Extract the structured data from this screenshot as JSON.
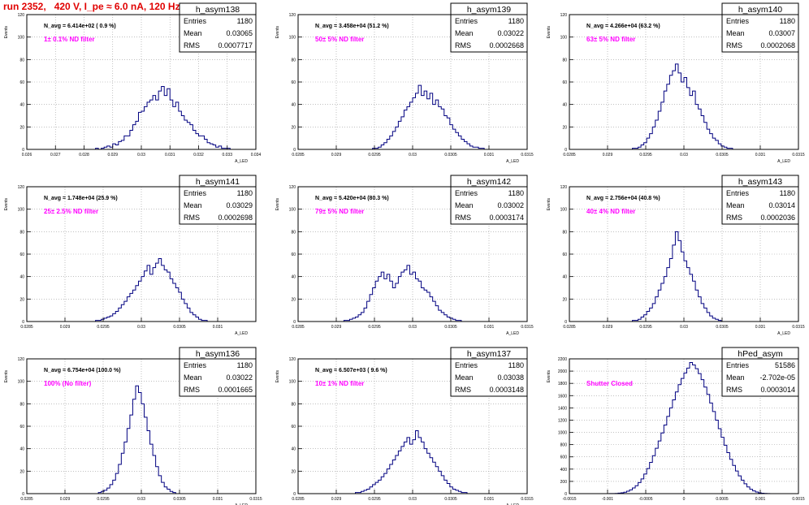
{
  "run_title": "run 2352,   420 V, I_pe ≈ 6.0 nA, 120 Hz",
  "colors": {
    "hist_line": "#000080",
    "frame": "#000000",
    "grid": "#9a9a9a",
    "filter_text": "#ff00ff",
    "title": "#e00000"
  },
  "chart_data": [
    {
      "type": "bar",
      "name": "h_asym138",
      "stats": {
        "Entries": "1180",
        "Mean": "0.03065",
        "RMS": "0.0007717"
      },
      "navg": "N_avg = 6.414e+02 ( 0.9 %)",
      "filter": "1± 0.1% ND filter",
      "ylabel": "Events",
      "xlabel": "A_LED",
      "xlim": [
        0.026,
        0.034
      ],
      "ylim": [
        0,
        120
      ],
      "yticks": [
        "0",
        "20",
        "40",
        "60",
        "80",
        "100",
        "120"
      ],
      "xticks": [
        "0.026",
        "0.027",
        "0.028",
        "0.029",
        "0.03",
        "0.031",
        "0.032",
        "0.033",
        "0.034"
      ],
      "values": [
        0,
        0,
        0,
        0,
        0,
        0,
        0,
        0,
        0,
        0,
        0,
        0,
        0,
        0,
        0,
        0,
        0,
        0,
        0,
        0,
        0,
        0,
        0,
        0,
        1,
        0,
        1,
        2,
        3,
        2,
        5,
        4,
        7,
        8,
        12,
        12,
        17,
        22,
        25,
        33,
        34,
        38,
        42,
        44,
        48,
        44,
        52,
        56,
        48,
        54,
        44,
        38,
        42,
        34,
        30,
        26,
        24,
        22,
        17,
        14,
        12,
        12,
        9,
        6,
        5,
        4,
        2,
        3,
        1,
        1,
        1,
        0,
        0,
        0,
        0,
        0,
        0,
        0,
        0,
        0
      ]
    },
    {
      "type": "bar",
      "name": "h_asym139",
      "stats": {
        "Entries": "1180",
        "Mean": "0.03022",
        "RMS": "0.0002668"
      },
      "navg": "N_avg = 3.458e+04 (51.2 %)",
      "filter": "50± 5% ND filter",
      "ylabel": "Events",
      "xlabel": "A_LED",
      "xlim": [
        0.0285,
        0.0315
      ],
      "ylim": [
        0,
        120
      ],
      "yticks": [
        "0",
        "20",
        "40",
        "60",
        "80",
        "100",
        "120"
      ],
      "xticks": [
        "0.0285",
        "0.029",
        "0.0295",
        "0.03",
        "0.0305",
        "0.031",
        "0.0315"
      ],
      "values": [
        0,
        0,
        0,
        0,
        0,
        0,
        0,
        0,
        0,
        0,
        0,
        0,
        0,
        0,
        0,
        0,
        0,
        0,
        0,
        0,
        0,
        0,
        0,
        0,
        0,
        0,
        1,
        1,
        2,
        4,
        6,
        9,
        12,
        16,
        20,
        25,
        29,
        35,
        38,
        42,
        46,
        50,
        57,
        48,
        52,
        45,
        50,
        40,
        44,
        38,
        36,
        30,
        28,
        22,
        18,
        15,
        12,
        9,
        7,
        5,
        3,
        2,
        2,
        1,
        1,
        0,
        0,
        0,
        0,
        0,
        0,
        0,
        0,
        0,
        0,
        0,
        0,
        0,
        0,
        0
      ]
    },
    {
      "type": "bar",
      "name": "h_asym140",
      "stats": {
        "Entries": "1180",
        "Mean": "0.03007",
        "RMS": "0.0002068"
      },
      "navg": "N_avg = 4.266e+04 (63.2 %)",
      "filter": "63± 5% ND filter",
      "ylabel": "Events",
      "xlabel": "A_LED",
      "xlim": [
        0.0285,
        0.0315
      ],
      "ylim": [
        0,
        120
      ],
      "yticks": [
        "0",
        "20",
        "40",
        "60",
        "80",
        "100",
        "120"
      ],
      "xticks": [
        "0.0285",
        "0.029",
        "0.0295",
        "0.03",
        "0.0305",
        "0.031",
        "0.0315"
      ],
      "values": [
        0,
        0,
        0,
        0,
        0,
        0,
        0,
        0,
        0,
        0,
        0,
        0,
        0,
        0,
        0,
        0,
        0,
        0,
        0,
        0,
        0,
        0,
        1,
        1,
        2,
        4,
        6,
        10,
        14,
        20,
        26,
        34,
        42,
        52,
        58,
        66,
        70,
        76,
        68,
        60,
        64,
        55,
        48,
        52,
        40,
        36,
        30,
        24,
        18,
        14,
        10,
        8,
        5,
        3,
        2,
        1,
        1,
        0,
        0,
        0,
        0,
        0,
        0,
        0,
        0,
        0,
        0,
        0,
        0,
        0,
        0,
        0,
        0,
        0,
        0,
        0,
        0,
        0,
        0,
        0
      ]
    },
    {
      "type": "bar",
      "name": "h_asym141",
      "stats": {
        "Entries": "1180",
        "Mean": "0.03029",
        "RMS": "0.0002698"
      },
      "navg": "N_avg = 1.748e+04 (25.9 %)",
      "filter": "25± 2.5% ND filter",
      "ylabel": "Events",
      "xlabel": "A_LED",
      "xlim": [
        0.0285,
        0.0315
      ],
      "ylim": [
        0,
        120
      ],
      "yticks": [
        "0",
        "20",
        "40",
        "60",
        "80",
        "100",
        "120"
      ],
      "xticks": [
        "0.0285",
        "0.029",
        "0.0295",
        "0.03",
        "0.0305",
        "0.031"
      ],
      "values": [
        0,
        0,
        0,
        0,
        0,
        0,
        0,
        0,
        0,
        0,
        0,
        0,
        0,
        0,
        0,
        0,
        0,
        0,
        0,
        0,
        0,
        0,
        0,
        0,
        1,
        1,
        2,
        3,
        4,
        5,
        7,
        9,
        12,
        15,
        18,
        22,
        25,
        28,
        32,
        36,
        40,
        45,
        50,
        42,
        48,
        52,
        56,
        50,
        46,
        44,
        38,
        34,
        30,
        26,
        20,
        16,
        12,
        8,
        6,
        4,
        2,
        1,
        1,
        0,
        0,
        0,
        0,
        0,
        0,
        0,
        0,
        0,
        0,
        0,
        0,
        0,
        0,
        0,
        0,
        0
      ]
    },
    {
      "type": "bar",
      "name": "h_asym142",
      "stats": {
        "Entries": "1180",
        "Mean": "0.03002",
        "RMS": "0.0003174"
      },
      "navg": "N_avg = 5.420e+04 (80.3 %)",
      "filter": "79± 5% ND filter",
      "ylabel": "Events",
      "xlabel": "A_LED",
      "xlim": [
        0.0285,
        0.0315
      ],
      "ylim": [
        0,
        120
      ],
      "yticks": [
        "0",
        "20",
        "40",
        "60",
        "80",
        "100",
        "120"
      ],
      "xticks": [
        "0.0285",
        "0.029",
        "0.0295",
        "0.03",
        "0.0305",
        "0.031",
        "0.0315"
      ],
      "values": [
        0,
        0,
        0,
        0,
        0,
        0,
        0,
        0,
        0,
        0,
        0,
        0,
        0,
        0,
        0,
        0,
        1,
        1,
        2,
        3,
        4,
        6,
        8,
        12,
        18,
        24,
        30,
        36,
        40,
        44,
        38,
        42,
        36,
        30,
        34,
        40,
        44,
        46,
        50,
        42,
        44,
        38,
        36,
        30,
        28,
        26,
        22,
        18,
        14,
        10,
        8,
        6,
        4,
        3,
        2,
        1,
        1,
        0,
        0,
        0,
        0,
        0,
        0,
        0,
        0,
        0,
        0,
        0,
        0,
        0,
        0,
        0,
        0,
        0,
        0,
        0,
        0,
        0,
        0,
        0
      ]
    },
    {
      "type": "bar",
      "name": "h_asym143",
      "stats": {
        "Entries": "1180",
        "Mean": "0.03014",
        "RMS": "0.0002036"
      },
      "navg": "N_avg = 2.756e+04 (40.8 %)",
      "filter": "40± 4% ND filter",
      "ylabel": "Events",
      "xlabel": "A_LED",
      "xlim": [
        0.0285,
        0.0315
      ],
      "ylim": [
        0,
        120
      ],
      "yticks": [
        "0",
        "20",
        "40",
        "60",
        "80",
        "100",
        "120"
      ],
      "xticks": [
        "0.0285",
        "0.029",
        "0.0295",
        "0.03",
        "0.0305",
        "0.031",
        "0.0315"
      ],
      "values": [
        0,
        0,
        0,
        0,
        0,
        0,
        0,
        0,
        0,
        0,
        0,
        0,
        0,
        0,
        0,
        0,
        0,
        0,
        0,
        0,
        0,
        0,
        1,
        1,
        2,
        4,
        6,
        9,
        12,
        16,
        22,
        28,
        34,
        40,
        48,
        56,
        68,
        80,
        72,
        62,
        54,
        48,
        42,
        36,
        28,
        22,
        16,
        12,
        8,
        5,
        3,
        2,
        1,
        0,
        0,
        0,
        0,
        0,
        0,
        0,
        0,
        0,
        0,
        0,
        0,
        0,
        0,
        0,
        0,
        0,
        0,
        0,
        0,
        0,
        0,
        0,
        0,
        0,
        0,
        0
      ]
    },
    {
      "type": "bar",
      "name": "h_asym136",
      "stats": {
        "Entries": "1180",
        "Mean": "0.03022",
        "RMS": "0.0001665"
      },
      "navg": "N_avg = 6.754e+04 (100.0 %)",
      "filter": "100% (No filter)",
      "ylabel": "Events",
      "xlabel": "A_LED",
      "xlim": [
        0.0285,
        0.0315
      ],
      "ylim": [
        0,
        120
      ],
      "yticks": [
        "0",
        "20",
        "40",
        "60",
        "80",
        "100",
        "120"
      ],
      "xticks": [
        "0.0285",
        "0.029",
        "0.0295",
        "0.03",
        "0.0305",
        "0.031",
        "0.0315"
      ],
      "values": [
        0,
        0,
        0,
        0,
        0,
        0,
        0,
        0,
        0,
        0,
        0,
        0,
        0,
        0,
        0,
        0,
        0,
        0,
        0,
        0,
        0,
        0,
        0,
        0,
        0,
        1,
        2,
        3,
        5,
        8,
        12,
        18,
        26,
        36,
        46,
        58,
        70,
        84,
        96,
        90,
        80,
        68,
        56,
        44,
        34,
        24,
        16,
        10,
        6,
        4,
        2,
        1,
        0,
        0,
        0,
        0,
        0,
        0,
        0,
        0,
        0,
        0,
        0,
        0,
        0,
        0,
        0,
        0,
        0,
        0,
        0,
        0,
        0,
        0,
        0,
        0,
        0,
        0,
        0,
        0
      ]
    },
    {
      "type": "bar",
      "name": "h_asym137",
      "stats": {
        "Entries": "1180",
        "Mean": "0.03038",
        "RMS": "0.0003148"
      },
      "navg": "N_avg = 6.507e+03 ( 9.6 %)",
      "filter": "10± 1% ND filter",
      "ylabel": "Events",
      "xlabel": "A_LED",
      "xlim": [
        0.0285,
        0.0315
      ],
      "ylim": [
        0,
        120
      ],
      "yticks": [
        "0",
        "20",
        "40",
        "60",
        "80",
        "100",
        "120"
      ],
      "xticks": [
        "0.0285",
        "0.029",
        "0.0295",
        "0.03",
        "0.0305",
        "0.031",
        "0.0315"
      ],
      "values": [
        0,
        0,
        0,
        0,
        0,
        0,
        0,
        0,
        0,
        0,
        0,
        0,
        0,
        0,
        0,
        0,
        0,
        0,
        0,
        0,
        1,
        1,
        2,
        3,
        4,
        6,
        8,
        10,
        12,
        15,
        18,
        22,
        26,
        30,
        34,
        38,
        42,
        46,
        50,
        44,
        48,
        56,
        50,
        46,
        40,
        36,
        32,
        28,
        24,
        20,
        16,
        12,
        9,
        6,
        4,
        3,
        2,
        1,
        1,
        0,
        0,
        0,
        0,
        0,
        0,
        0,
        0,
        0,
        0,
        0,
        0,
        0,
        0,
        0,
        0,
        0,
        0,
        0,
        0,
        0
      ]
    },
    {
      "type": "bar",
      "name": "hPed_asym",
      "stats": {
        "Entries": "51586",
        "Mean": "-2.702e-05",
        "RMS": "0.0003014"
      },
      "navg": "",
      "filter": "Shutter Closed",
      "ylabel": "Events",
      "xlabel": "",
      "xlim": [
        -0.0015,
        0.0015
      ],
      "ylim": [
        0,
        2200
      ],
      "yticks": [
        "0",
        "200",
        "400",
        "600",
        "800",
        "1000",
        "1200",
        "1400",
        "1600",
        "1800",
        "2000",
        "2200"
      ],
      "xticks": [
        "-0.0015",
        "-0.001",
        "-0.0005",
        "0",
        "0.0005",
        "0.001",
        "0.0015"
      ],
      "values": [
        0,
        0,
        0,
        0,
        0,
        0,
        0,
        0,
        0,
        0,
        0,
        0,
        0,
        0,
        1,
        2,
        4,
        8,
        14,
        24,
        40,
        62,
        92,
        130,
        180,
        240,
        320,
        410,
        510,
        620,
        740,
        860,
        990,
        1120,
        1260,
        1400,
        1530,
        1660,
        1780,
        1880,
        1970,
        2050,
        2140,
        2100,
        2040,
        1960,
        1860,
        1740,
        1620,
        1480,
        1340,
        1200,
        1060,
        920,
        790,
        670,
        560,
        460,
        370,
        290,
        220,
        160,
        110,
        72,
        44,
        26,
        14,
        7,
        3,
        1,
        0,
        0,
        0,
        0,
        0,
        0,
        0,
        0,
        0,
        0
      ]
    }
  ]
}
